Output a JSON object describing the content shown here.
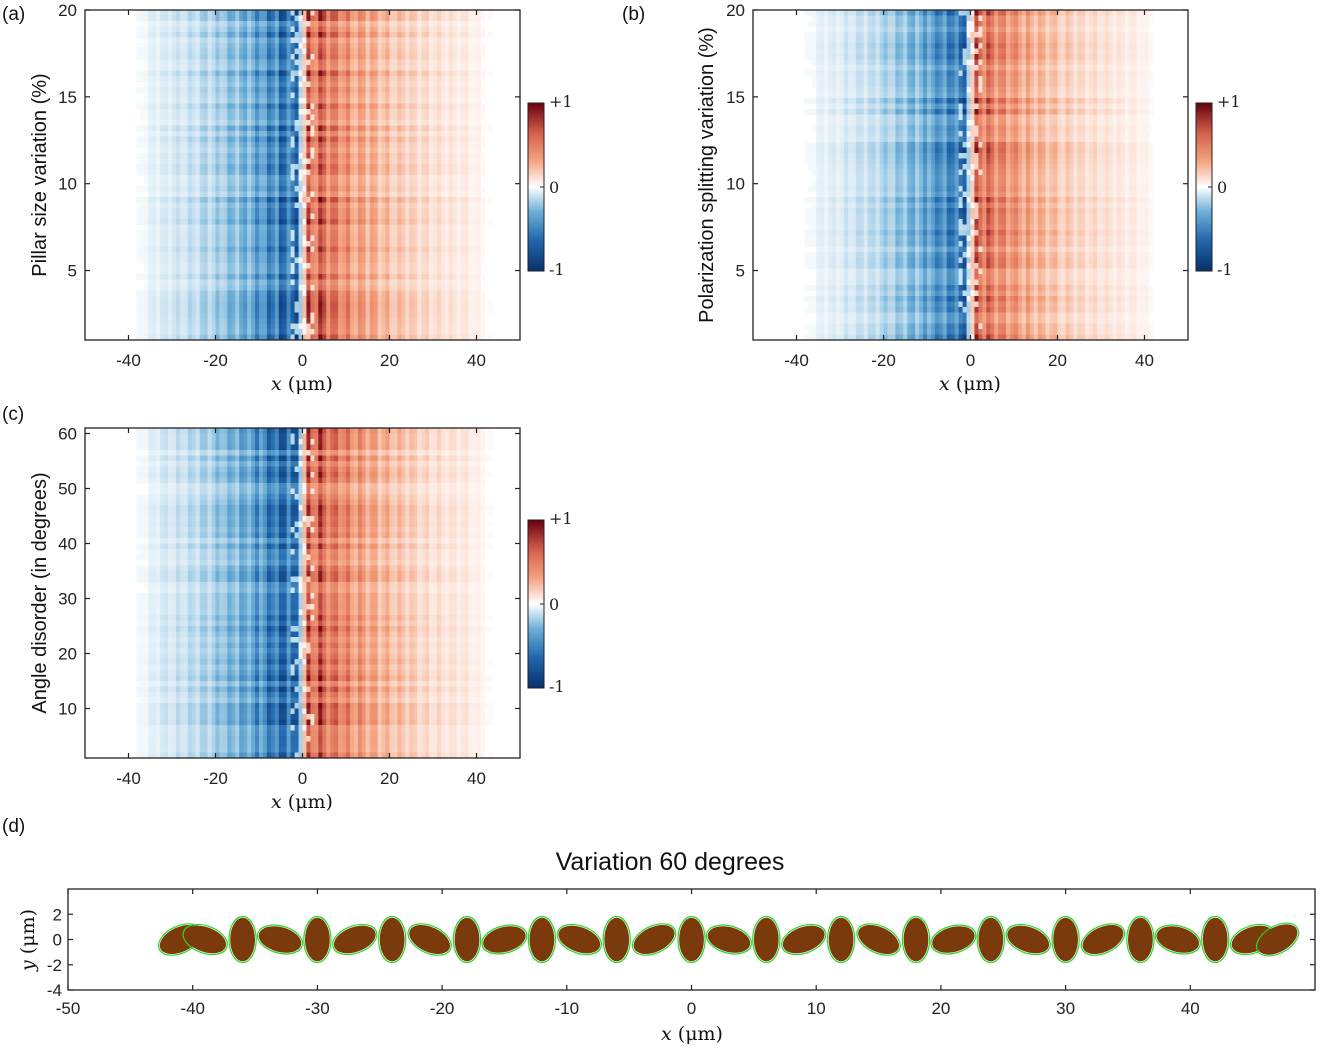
{
  "colors": {
    "negative": "#08306b",
    "positive": "#67000d",
    "zero": "#ffffff",
    "pillar_fill": "#7a3a0c",
    "pillar_outline": "#2bd62b"
  },
  "colorbar": {
    "max_label": "+1",
    "zero_label": "0",
    "min_label": "-1"
  },
  "chart_data": [
    {
      "panel": "(a)",
      "type": "heatmap",
      "xlabel_var": "x",
      "xlabel_unit": "(μm)",
      "ylabel": "Pillar size variation (%)",
      "xlim": [
        -50,
        50
      ],
      "ylim": [
        1,
        20
      ],
      "xticks": [
        -40,
        -20,
        0,
        20,
        40
      ],
      "xtick_labels": [
        "-40",
        "-20",
        "0",
        "20",
        "40"
      ],
      "yticks": [
        5,
        10,
        15,
        20
      ],
      "ytick_labels": [
        "5",
        "10",
        "15",
        "20"
      ],
      "x_extent": [
        -40,
        45
      ],
      "color_range": [
        -1,
        1
      ],
      "pattern": "negative for x<0, positive for x>0, peak magnitude near |x|≈3–6"
    },
    {
      "panel": "(b)",
      "type": "heatmap",
      "xlabel_var": "x",
      "xlabel_unit": "(μm)",
      "ylabel": "Polarization splitting variation (%)",
      "xlim": [
        -50,
        50
      ],
      "ylim": [
        1,
        20
      ],
      "xticks": [
        -40,
        -20,
        0,
        20,
        40
      ],
      "xtick_labels": [
        "-40",
        "-20",
        "0",
        "20",
        "40"
      ],
      "yticks": [
        5,
        10,
        15,
        20
      ],
      "ytick_labels": [
        "5",
        "10",
        "15",
        "20"
      ],
      "x_extent": [
        -40,
        45
      ],
      "color_range": [
        -1,
        1
      ],
      "pattern": "negative for x<0, positive for x>0, peak magnitude near |x|≈2–5"
    },
    {
      "panel": "(c)",
      "type": "heatmap",
      "xlabel_var": "x",
      "xlabel_unit": "(μm)",
      "ylabel": "Angle disorder (in degrees)",
      "xlim": [
        -50,
        50
      ],
      "ylim": [
        1,
        61
      ],
      "xticks": [
        -40,
        -20,
        0,
        20,
        40
      ],
      "xtick_labels": [
        "-40",
        "-20",
        "0",
        "20",
        "40"
      ],
      "yticks": [
        10,
        20,
        30,
        40,
        50,
        60
      ],
      "ytick_labels": [
        "10",
        "20",
        "30",
        "40",
        "50",
        "60"
      ],
      "x_extent": [
        -40,
        45
      ],
      "color_range": [
        -1,
        1
      ],
      "pattern": "negative for x<0, positive for x>0, peak magnitude near |x|≈5"
    },
    {
      "panel": "(d)",
      "type": "scatter",
      "title": "Variation 60 degrees",
      "xlabel_var": "x",
      "xlabel_unit": "(μm)",
      "ylabel_var": "y",
      "ylabel_unit": "(μm)",
      "xlim": [
        -50,
        50
      ],
      "ylim": [
        -4,
        4
      ],
      "xticks": [
        -50,
        -40,
        -30,
        -20,
        -10,
        0,
        10,
        20,
        30,
        40
      ],
      "xtick_labels": [
        "-50",
        "-40",
        "-30",
        "-20",
        "-10",
        "0",
        "10",
        "20",
        "30",
        "40"
      ],
      "yticks": [
        -4,
        -2,
        0,
        2
      ],
      "ytick_labels": [
        "-4",
        "-2",
        "0",
        "2"
      ],
      "pillar_x": [
        -41,
        -39,
        -36,
        -33,
        -30,
        -27,
        -24,
        -21,
        -18,
        -15,
        -12,
        -9,
        -6,
        -3,
        0,
        3,
        6,
        9,
        12,
        15,
        18,
        21,
        24,
        27,
        30,
        33,
        36,
        39,
        42,
        45,
        47
      ],
      "pillar_angle_deg": [
        25,
        -20,
        90,
        -15,
        90,
        20,
        90,
        -25,
        90,
        15,
        90,
        -20,
        90,
        25,
        90,
        -15,
        90,
        20,
        90,
        -25,
        90,
        15,
        90,
        -20,
        90,
        25,
        90,
        -15,
        90,
        20,
        30
      ]
    }
  ]
}
